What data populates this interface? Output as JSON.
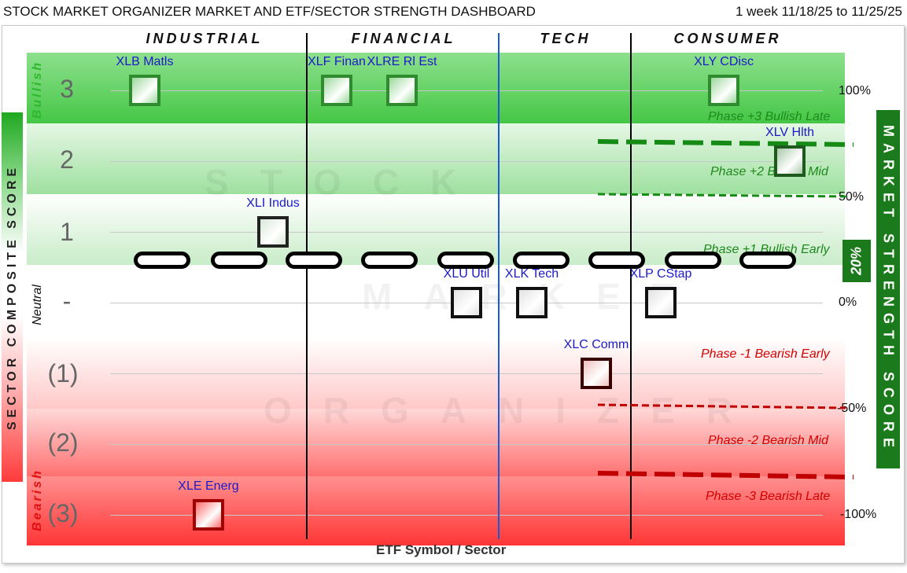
{
  "header": {
    "title": "STOCK MARKET ORGANIZER MARKET AND ETF/SECTOR STRENGTH DASHBOARD",
    "date_range": "1 week 11/18/25 to 11/25/25"
  },
  "watermark": [
    "STOCK",
    "MARKET",
    "ORGANIZER"
  ],
  "chart_data": {
    "type": "scatter",
    "title": "STOCK MARKET ORGANIZER MARKET AND ETF/SECTOR STRENGTH DASHBOARD",
    "subtitle": "1 week 11/18/25 to 11/25/25",
    "xlabel": "ETF Symbol / Sector",
    "ylabel_left": "SECTOR COMPOSITE SCORE",
    "ylabel_right": "MARKET STRENGTH SCORE",
    "sector_groups": [
      "INDUSTRIAL",
      "FINANCIAL",
      "TECH",
      "CONSUMER"
    ],
    "score_labels": [
      "3",
      "2",
      "1",
      "-",
      "(1)",
      "(2)",
      "(3)"
    ],
    "bias_labels": {
      "bullish": "Bullish",
      "neutral": "Neutral",
      "bearish": "Bearish"
    },
    "percent_labels": [
      "100%",
      "50%",
      "0%",
      "-50%",
      "-100%"
    ],
    "phase_labels": [
      {
        "text": "Phase +3 Bullish Late",
        "tone": "bull"
      },
      {
        "text": "Phase +2 Bullish Mid",
        "tone": "bull"
      },
      {
        "text": "Phase +1 Bullish Early",
        "tone": "bull"
      },
      {
        "text": "Phase -1 Bearish Early",
        "tone": "bear"
      },
      {
        "text": "Phase -2 Bearish Mid",
        "tone": "bear"
      },
      {
        "text": "Phase -3 Bearish Late",
        "tone": "bear"
      }
    ],
    "market_strength_score": "20%",
    "market_strength_value": 20,
    "etfs": [
      {
        "label": "XLB Matls",
        "sector": "INDUSTRIAL",
        "score": 3,
        "color": "#2e8b2e",
        "fill": "#9ad89a"
      },
      {
        "label": "XLI Indus",
        "sector": "INDUSTRIAL",
        "score": 1,
        "color": "#222222",
        "fill": "#d8e8d8"
      },
      {
        "label": "XLE Energ",
        "sector": "INDUSTRIAL",
        "score": -3,
        "color": "#a00000",
        "fill": "#ff6a6a"
      },
      {
        "label": "XLF Finan",
        "sector": "FINANCIAL",
        "score": 3,
        "color": "#2e8b2e",
        "fill": "#9ad89a"
      },
      {
        "label": "XLRE Rl Est",
        "sector": "FINANCIAL",
        "score": 3,
        "color": "#2e8b2e",
        "fill": "#9ad89a"
      },
      {
        "label": "XLU Util",
        "sector": "FINANCIAL",
        "score": 0,
        "color": "#111111",
        "fill": "#e2e2e2"
      },
      {
        "label": "XLK Tech",
        "sector": "TECH",
        "score": 0,
        "color": "#111111",
        "fill": "#e2e2e2"
      },
      {
        "label": "XLC Comm",
        "sector": "TECH",
        "score": -1,
        "color": "#3a0000",
        "fill": "#f0c0c0"
      },
      {
        "label": "XLP CStap",
        "sector": "CONSUMER",
        "score": 0,
        "color": "#111111",
        "fill": "#e2e2e2"
      },
      {
        "label": "XLY CDisc",
        "sector": "CONSUMER",
        "score": 3,
        "color": "#2e8b2e",
        "fill": "#9ad89a"
      },
      {
        "label": "XLV Hlth",
        "sector": "CONSUMER",
        "score": 2,
        "color": "#1e5a1e",
        "fill": "#a8c8a8"
      }
    ],
    "colors": {
      "bull_green": "#1b7a1b",
      "bear_red": "#d40000",
      "sector_divider": "#000000",
      "tech_divider": "#1a5ad8"
    }
  }
}
